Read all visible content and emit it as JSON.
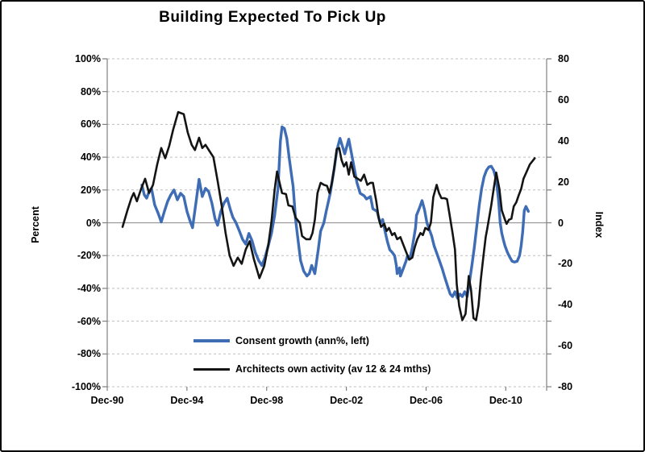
{
  "chart_data": {
    "type": "line",
    "title": "Building Expected To Pick Up",
    "grid": "dashed-horizontal",
    "legend_position": "bottom-inside",
    "colors": {
      "gridline": "#bfbfbf",
      "zero_line": "#999999",
      "axis_line": "#808080",
      "background": "#ffffff"
    },
    "left_axis": {
      "title": "Percent",
      "min": -100,
      "max": 100,
      "step": 20,
      "tick_labels": [
        "100%",
        "80%",
        "60%",
        "40%",
        "20%",
        "0%",
        "-20%",
        "-40%",
        "-60%",
        "-80%",
        "-100%"
      ]
    },
    "right_axis": {
      "title": "Index",
      "min": -80,
      "max": 80,
      "step": 20,
      "tick_labels": [
        "80",
        "60",
        "40",
        "20",
        "0",
        "-20",
        "-40",
        "-60",
        "-80"
      ]
    },
    "x_axis": {
      "unit": "years since Dec-1990",
      "range_years": [
        0,
        22.05
      ],
      "tick_years": [
        0,
        4,
        8,
        12,
        16,
        20
      ],
      "tick_labels": [
        "Dec-90",
        "Dec-94",
        "Dec-98",
        "Dec-02",
        "Dec-06",
        "Dec-10"
      ]
    },
    "series": [
      {
        "name": "Consent growth (ann%, left)",
        "axis": "left",
        "color": "#3f6db5",
        "width": 3.4,
        "data": [
          [
            1.74,
            23
          ],
          [
            1.86,
            17
          ],
          [
            1.98,
            15
          ],
          [
            2.1,
            19
          ],
          [
            2.22,
            21
          ],
          [
            2.38,
            11
          ],
          [
            2.55,
            6
          ],
          [
            2.71,
            0.5
          ],
          [
            2.87,
            7
          ],
          [
            3.03,
            13
          ],
          [
            3.19,
            17
          ],
          [
            3.35,
            20
          ],
          [
            3.52,
            14
          ],
          [
            3.68,
            18
          ],
          [
            3.84,
            16
          ],
          [
            4.0,
            7
          ],
          [
            4.16,
            1
          ],
          [
            4.28,
            -3
          ],
          [
            4.44,
            11
          ],
          [
            4.61,
            26.5
          ],
          [
            4.77,
            16
          ],
          [
            4.93,
            21
          ],
          [
            5.09,
            19
          ],
          [
            5.25,
            12
          ],
          [
            5.41,
            2.5
          ],
          [
            5.54,
            -1.5
          ],
          [
            5.7,
            7
          ],
          [
            5.86,
            12
          ],
          [
            6.02,
            15
          ],
          [
            6.18,
            8
          ],
          [
            6.3,
            3.5
          ],
          [
            6.46,
            0
          ],
          [
            6.63,
            -5
          ],
          [
            6.79,
            -10
          ],
          [
            6.95,
            -13
          ],
          [
            7.11,
            -6.5
          ],
          [
            7.27,
            -11
          ],
          [
            7.43,
            -18
          ],
          [
            7.6,
            -23
          ],
          [
            7.76,
            -26
          ],
          [
            7.92,
            -21
          ],
          [
            8.08,
            -14
          ],
          [
            8.24,
            -6.5
          ],
          [
            8.4,
            4.5
          ],
          [
            8.57,
            21
          ],
          [
            8.69,
            50
          ],
          [
            8.77,
            58.5
          ],
          [
            8.89,
            57.5
          ],
          [
            9.01,
            51.5
          ],
          [
            9.13,
            39.5
          ],
          [
            9.25,
            29
          ],
          [
            9.33,
            22
          ],
          [
            9.45,
            2
          ],
          [
            9.58,
            -11
          ],
          [
            9.7,
            -23
          ],
          [
            9.86,
            -29.5
          ],
          [
            10.02,
            -32.5
          ],
          [
            10.14,
            -31
          ],
          [
            10.26,
            -26
          ],
          [
            10.42,
            -31
          ],
          [
            10.59,
            -16.5
          ],
          [
            10.71,
            -5
          ],
          [
            10.87,
            0
          ],
          [
            10.99,
            7
          ],
          [
            11.19,
            18
          ],
          [
            11.39,
            33
          ],
          [
            11.52,
            44
          ],
          [
            11.68,
            51.5
          ],
          [
            11.92,
            42
          ],
          [
            12.12,
            51
          ],
          [
            12.4,
            33
          ],
          [
            12.53,
            24.5
          ],
          [
            12.69,
            18
          ],
          [
            12.89,
            16.5
          ],
          [
            13.01,
            14.5
          ],
          [
            13.21,
            16
          ],
          [
            13.33,
            8.5
          ],
          [
            13.54,
            7
          ],
          [
            13.7,
            -0.5
          ],
          [
            13.82,
            2
          ],
          [
            13.94,
            -5
          ],
          [
            14.06,
            -11.5
          ],
          [
            14.18,
            -16.5
          ],
          [
            14.3,
            -18
          ],
          [
            14.42,
            -20
          ],
          [
            14.51,
            -26
          ],
          [
            14.55,
            -31
          ],
          [
            14.67,
            -27.5
          ],
          [
            14.71,
            -32.5
          ],
          [
            14.87,
            -27.5
          ],
          [
            14.99,
            -23.5
          ],
          [
            15.07,
            -20
          ],
          [
            15.19,
            -22
          ],
          [
            15.31,
            -15
          ],
          [
            15.47,
            -3
          ],
          [
            15.52,
            4.5
          ],
          [
            15.68,
            9.5
          ],
          [
            15.8,
            13.5
          ],
          [
            15.92,
            8
          ],
          [
            16.04,
            0
          ],
          [
            16.16,
            -4
          ],
          [
            16.28,
            -8
          ],
          [
            16.4,
            -14
          ],
          [
            16.61,
            -21
          ],
          [
            16.81,
            -28
          ],
          [
            16.93,
            -33
          ],
          [
            17.09,
            -39
          ],
          [
            17.21,
            -43.5
          ],
          [
            17.33,
            -45
          ],
          [
            17.45,
            -42
          ],
          [
            17.58,
            -46
          ],
          [
            17.7,
            -43.5
          ],
          [
            17.82,
            -45
          ],
          [
            17.94,
            -42
          ],
          [
            18.06,
            -45
          ],
          [
            18.18,
            -36
          ],
          [
            18.3,
            -26
          ],
          [
            18.42,
            -15
          ],
          [
            18.55,
            -1.5
          ],
          [
            18.67,
            11
          ],
          [
            18.79,
            21
          ],
          [
            18.91,
            28
          ],
          [
            19.03,
            32
          ],
          [
            19.15,
            34
          ],
          [
            19.27,
            34.5
          ],
          [
            19.39,
            32
          ],
          [
            19.52,
            26.5
          ],
          [
            19.64,
            13.5
          ],
          [
            19.72,
            0
          ],
          [
            19.8,
            -6.5
          ],
          [
            19.88,
            -10.5
          ],
          [
            19.96,
            -14
          ],
          [
            20.08,
            -18
          ],
          [
            20.2,
            -21
          ],
          [
            20.32,
            -23.5
          ],
          [
            20.44,
            -24
          ],
          [
            20.57,
            -23.5
          ],
          [
            20.69,
            -20
          ],
          [
            20.77,
            -14
          ],
          [
            20.85,
            -5.5
          ],
          [
            20.93,
            7.5
          ],
          [
            21.01,
            10
          ],
          [
            21.13,
            7
          ]
        ]
      },
      {
        "name": "Architects own activity (av 12 & 24 mths)",
        "axis": "right",
        "color": "#141414",
        "width": 2.6,
        "data": [
          [
            0.77,
            -2
          ],
          [
            1.01,
            6
          ],
          [
            1.21,
            12
          ],
          [
            1.33,
            14.5
          ],
          [
            1.49,
            10.5
          ],
          [
            1.7,
            16.5
          ],
          [
            1.9,
            21.5
          ],
          [
            2.1,
            14.5
          ],
          [
            2.3,
            18.5
          ],
          [
            2.51,
            28.5
          ],
          [
            2.71,
            36.5
          ],
          [
            2.91,
            31.5
          ],
          [
            3.11,
            37.5
          ],
          [
            3.31,
            45.5
          ],
          [
            3.56,
            54
          ],
          [
            3.84,
            53
          ],
          [
            4.04,
            44
          ],
          [
            4.24,
            38
          ],
          [
            4.4,
            35.5
          ],
          [
            4.61,
            41.5
          ],
          [
            4.77,
            36.5
          ],
          [
            4.93,
            38
          ],
          [
            5.13,
            35
          ],
          [
            5.33,
            32
          ],
          [
            5.54,
            20.5
          ],
          [
            5.74,
            8.5
          ],
          [
            5.94,
            -5
          ],
          [
            6.14,
            -16
          ],
          [
            6.34,
            -21
          ],
          [
            6.55,
            -17
          ],
          [
            6.75,
            -20
          ],
          [
            6.95,
            -13
          ],
          [
            7.15,
            -9
          ],
          [
            7.35,
            -17.5
          ],
          [
            7.64,
            -27
          ],
          [
            7.88,
            -21
          ],
          [
            8.08,
            -11
          ],
          [
            8.24,
            0.5
          ],
          [
            8.4,
            16
          ],
          [
            8.52,
            25
          ],
          [
            8.65,
            19.5
          ],
          [
            8.77,
            14.5
          ],
          [
            8.97,
            14
          ],
          [
            9.09,
            8.5
          ],
          [
            9.29,
            8
          ],
          [
            9.45,
            2.5
          ],
          [
            9.66,
            0
          ],
          [
            9.78,
            -6.5
          ],
          [
            9.98,
            -8
          ],
          [
            10.18,
            -8
          ],
          [
            10.3,
            -5
          ],
          [
            10.42,
            1.5
          ],
          [
            10.55,
            14.5
          ],
          [
            10.71,
            19.5
          ],
          [
            10.87,
            18.5
          ],
          [
            11.03,
            18
          ],
          [
            11.15,
            14.5
          ],
          [
            11.27,
            19.5
          ],
          [
            11.39,
            26.5
          ],
          [
            11.52,
            36
          ],
          [
            11.64,
            36.5
          ],
          [
            11.76,
            30.5
          ],
          [
            11.88,
            27.5
          ],
          [
            12.0,
            29.5
          ],
          [
            12.12,
            23.5
          ],
          [
            12.24,
            29.5
          ],
          [
            12.4,
            22.5
          ],
          [
            12.57,
            21.5
          ],
          [
            12.73,
            20.5
          ],
          [
            12.89,
            23.5
          ],
          [
            13.05,
            18.5
          ],
          [
            13.21,
            19.5
          ],
          [
            13.33,
            19.5
          ],
          [
            13.5,
            10.5
          ],
          [
            13.62,
            2.5
          ],
          [
            13.74,
            -2
          ],
          [
            13.9,
            -0.5
          ],
          [
            14.02,
            -4
          ],
          [
            14.14,
            -2.5
          ],
          [
            14.3,
            -6
          ],
          [
            14.42,
            -5
          ],
          [
            14.55,
            -8
          ],
          [
            14.71,
            -7
          ],
          [
            14.83,
            -10
          ],
          [
            15.03,
            -15
          ],
          [
            15.15,
            -18
          ],
          [
            15.31,
            -17
          ],
          [
            15.43,
            -12
          ],
          [
            15.56,
            -8
          ],
          [
            15.72,
            -5
          ],
          [
            15.84,
            -6
          ],
          [
            15.96,
            -2.5
          ],
          [
            16.12,
            -3.5
          ],
          [
            16.24,
            0
          ],
          [
            16.36,
            12.5
          ],
          [
            16.53,
            18.5
          ],
          [
            16.65,
            14.5
          ],
          [
            16.77,
            12
          ],
          [
            16.93,
            12
          ],
          [
            17.05,
            11.5
          ],
          [
            17.17,
            4.5
          ],
          [
            17.33,
            -5
          ],
          [
            17.45,
            -13
          ],
          [
            17.54,
            -30
          ],
          [
            17.66,
            -40.5
          ],
          [
            17.82,
            -47.5
          ],
          [
            17.98,
            -44.5
          ],
          [
            18.14,
            -26
          ],
          [
            18.26,
            -33
          ],
          [
            18.38,
            -46.5
          ],
          [
            18.51,
            -47.5
          ],
          [
            18.63,
            -40.5
          ],
          [
            18.75,
            -27.5
          ],
          [
            18.87,
            -17
          ],
          [
            18.99,
            -7
          ],
          [
            19.07,
            -3
          ],
          [
            19.27,
            8.5
          ],
          [
            19.39,
            16.5
          ],
          [
            19.52,
            24.5
          ],
          [
            19.68,
            16.5
          ],
          [
            19.8,
            6
          ],
          [
            19.96,
            1.5
          ],
          [
            20.04,
            -0.5
          ],
          [
            20.16,
            1.5
          ],
          [
            20.28,
            2
          ],
          [
            20.4,
            8
          ],
          [
            20.53,
            10
          ],
          [
            20.65,
            13.5
          ],
          [
            20.77,
            16.5
          ],
          [
            20.89,
            21.5
          ],
          [
            21.05,
            25
          ],
          [
            21.21,
            28.5
          ],
          [
            21.45,
            31.5
          ]
        ]
      }
    ]
  }
}
